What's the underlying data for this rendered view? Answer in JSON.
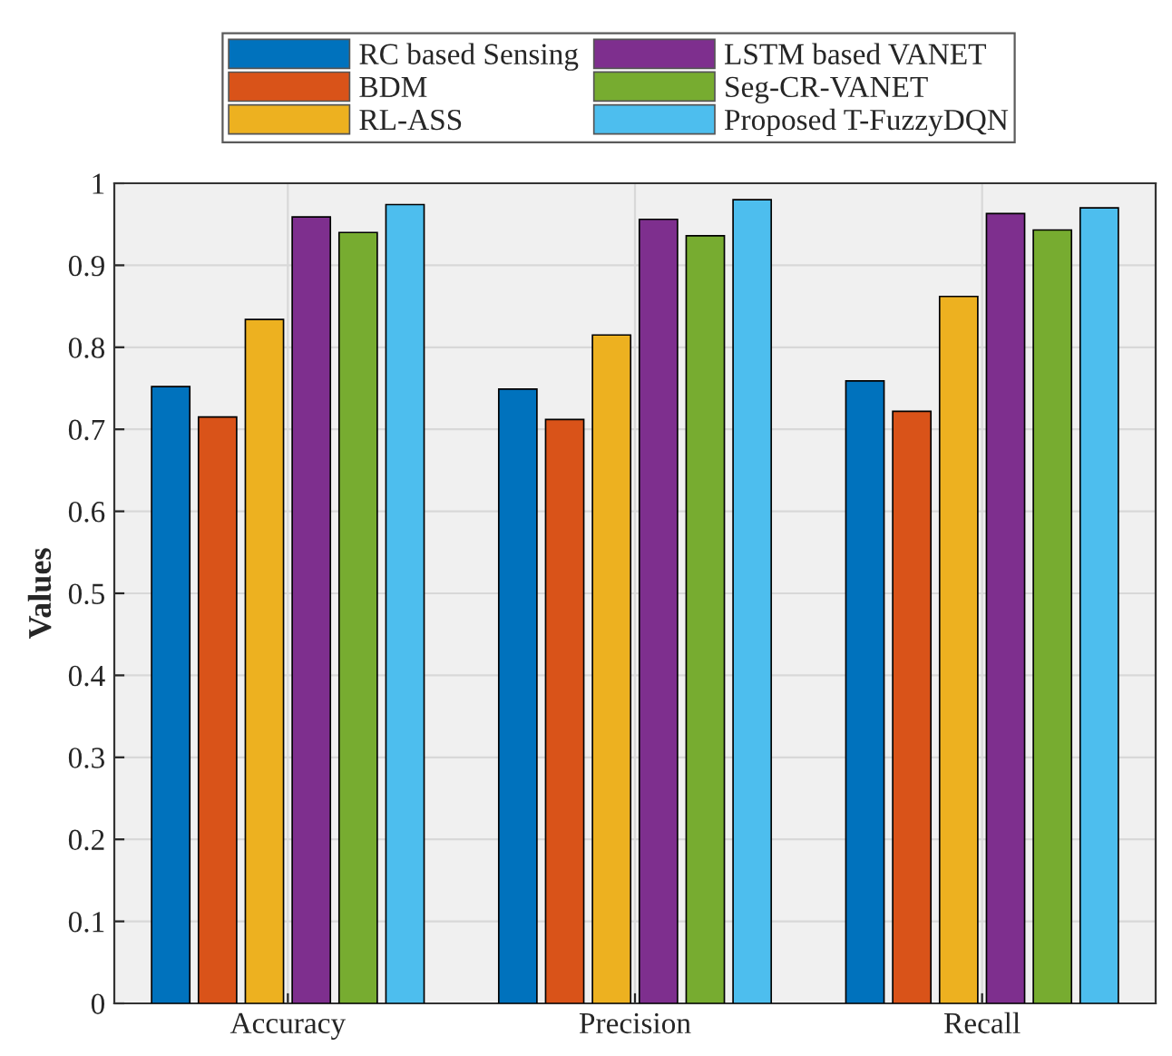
{
  "chart_data": {
    "type": "bar",
    "ylabel": "Values",
    "categories": [
      "Accuracy",
      "Precision",
      "Recall"
    ],
    "series": [
      {
        "name": "RC based Sensing",
        "color": "#0072bd",
        "values": [
          0.752,
          0.749,
          0.759
        ]
      },
      {
        "name": "BDM",
        "color": "#d95319",
        "values": [
          0.715,
          0.712,
          0.722
        ]
      },
      {
        "name": "RL-ASS",
        "color": "#edb120",
        "values": [
          0.834,
          0.815,
          0.862
        ]
      },
      {
        "name": "LSTM based VANET",
        "color": "#7e2f8e",
        "values": [
          0.959,
          0.956,
          0.963
        ]
      },
      {
        "name": "Seg-CR-VANET",
        "color": "#77ac30",
        "values": [
          0.94,
          0.936,
          0.943
        ]
      },
      {
        "name": "Proposed T-FuzzyDQN",
        "color": "#4dbeee",
        "values": [
          0.974,
          0.98,
          0.97
        ]
      }
    ],
    "ylim": [
      0,
      1
    ],
    "yticks": [
      0,
      0.1,
      0.2,
      0.3,
      0.4,
      0.5,
      0.6,
      0.7,
      0.8,
      0.9,
      1
    ],
    "grid": true,
    "legend": "top"
  }
}
